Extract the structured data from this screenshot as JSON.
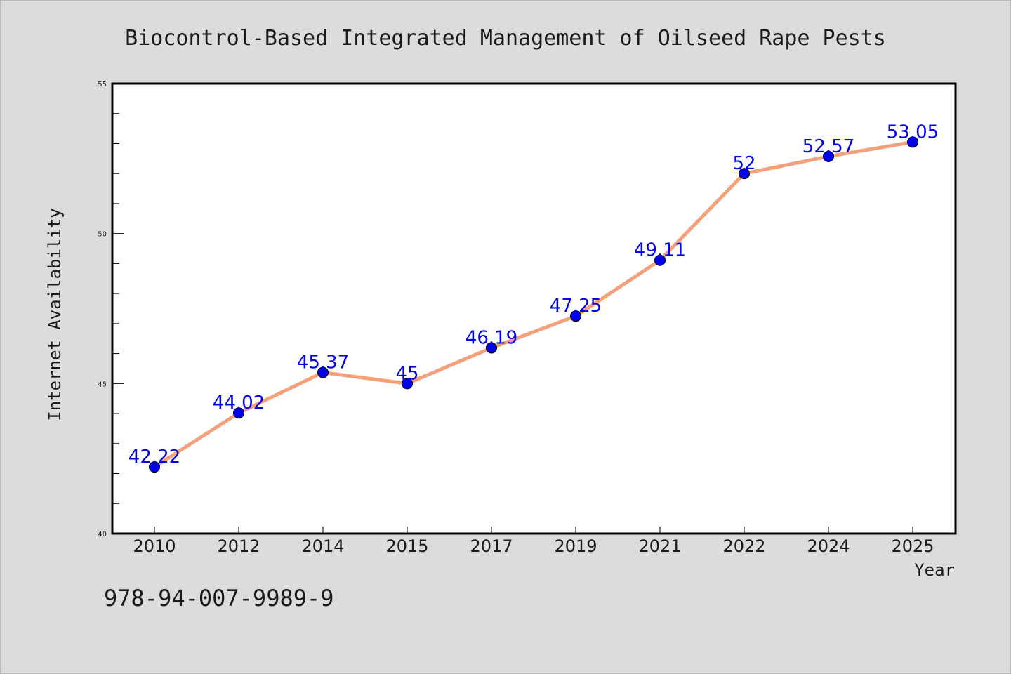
{
  "footer": {
    "isbn": "978-94-007-9989-9"
  },
  "colors": {
    "background": "#dcdcdc",
    "plot_background": "#ffffff",
    "line": "#f4a07a",
    "marker": "#0000ee",
    "data_label": "#0000ee"
  },
  "chart_data": {
    "type": "line",
    "title": "Biocontrol-Based Integrated Management of Oilseed Rape Pests",
    "xlabel": "Year",
    "ylabel": "Internet Availability",
    "categories": [
      "2010",
      "2012",
      "2014",
      "2015",
      "2017",
      "2019",
      "2021",
      "2022",
      "2024",
      "2025"
    ],
    "series": [
      {
        "values": [
          42.22,
          44.02,
          45.37,
          45,
          46.19,
          47.25,
          49.11,
          52,
          52.57,
          53.05
        ]
      }
    ],
    "data_labels": [
      "42.22",
      "44.02",
      "45.37",
      "45",
      "46.19",
      "47.25",
      "49.11",
      "52",
      "52.57",
      "53.05"
    ],
    "ylim": [
      40,
      55
    ],
    "yticks": [
      "40",
      "45",
      "50",
      "55"
    ],
    "grid": false,
    "legend": "none"
  }
}
